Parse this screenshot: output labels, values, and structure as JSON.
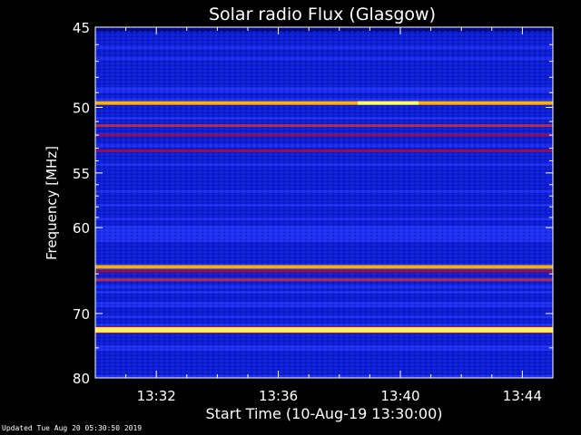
{
  "chart_data": {
    "type": "heatmap",
    "title": "Solar radio Flux (Glasgow)",
    "xlabel": "Start Time (10-Aug-19 13:30:00)",
    "ylabel": "Frequency [MHz]",
    "x_range_minutes": [
      0,
      15.0
    ],
    "x_ticks": [
      {
        "minute": 2,
        "label": "13:32"
      },
      {
        "minute": 6,
        "label": "13:36"
      },
      {
        "minute": 10,
        "label": "13:40"
      },
      {
        "minute": 14,
        "label": "13:44"
      }
    ],
    "ylim": [
      45,
      80
    ],
    "y_ticks": [
      45,
      50,
      55,
      60,
      70,
      80
    ],
    "y_scale": "reciprocal",
    "intensity_colormap": [
      "#000060",
      "#0818c8",
      "#2a3cff",
      "#7020a0",
      "#c00010",
      "#ff3010",
      "#ffb000",
      "#ffff60",
      "#ffffff"
    ],
    "bands": [
      {
        "freq_mhz": 49.7,
        "level": 0.78
      },
      {
        "freq_mhz": 51.3,
        "level": 0.6
      },
      {
        "freq_mhz": 52.0,
        "level": 0.55
      },
      {
        "freq_mhz": 53.2,
        "level": 0.52
      },
      {
        "freq_mhz": 64.2,
        "level": 0.8
      },
      {
        "freq_mhz": 64.7,
        "level": 0.55
      },
      {
        "freq_mhz": 65.7,
        "level": 0.58
      },
      {
        "freq_mhz": 72.3,
        "level": 1.0
      }
    ],
    "bursts": [
      {
        "freq_mhz": 49.7,
        "start_minute": 8.6,
        "end_minute": 10.6,
        "level": 0.92
      }
    ]
  },
  "footer": {
    "updated": "Updated Tue Aug 20 05:30:50 2019"
  },
  "colors": {
    "frame": "#ffffff",
    "background": "#000000"
  }
}
